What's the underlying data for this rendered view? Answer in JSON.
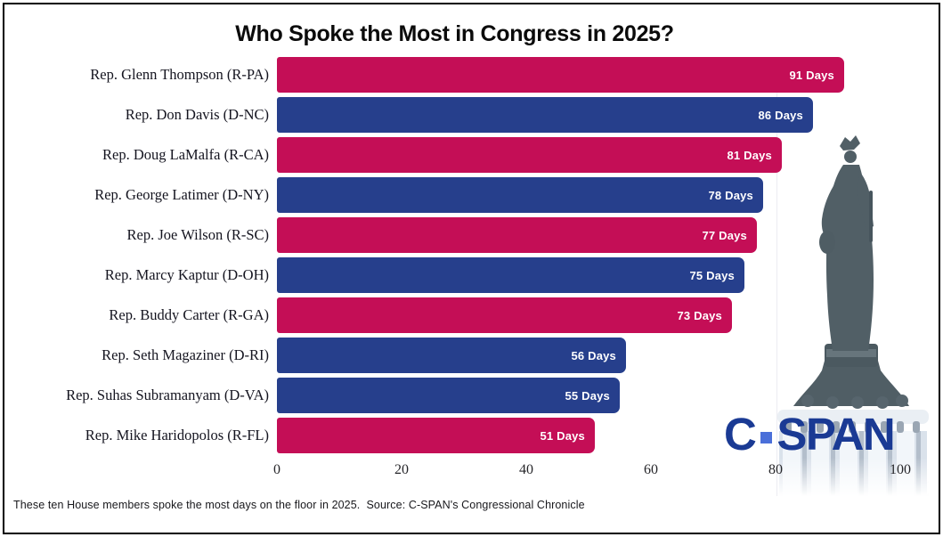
{
  "chart_data": {
    "type": "bar",
    "orientation": "horizontal",
    "title": "Who Spoke the Most in Congress in 2025?",
    "categories": [
      "Rep. Glenn Thompson (R-PA)",
      "Rep. Don Davis (D-NC)",
      "Rep. Doug LaMalfa (R-CA)",
      "Rep. George Latimer (D-NY)",
      "Rep. Joe Wilson (R-SC)",
      "Rep. Marcy Kaptur (D-OH)",
      "Rep. Buddy Carter (R-GA)",
      "Rep. Seth Magaziner (D-RI)",
      "Rep. Suhas Subramanyam (D-VA)",
      "Rep. Mike Haridopolos (R-FL)"
    ],
    "values": [
      91,
      86,
      81,
      78,
      77,
      75,
      73,
      56,
      55,
      51
    ],
    "parties": [
      "R",
      "D",
      "R",
      "D",
      "R",
      "D",
      "R",
      "D",
      "D",
      "R"
    ],
    "bar_colors": {
      "R": "#C40E56",
      "D": "#263F8C"
    },
    "value_suffix": " Days",
    "value_label_color": "#ffffff",
    "xlim": [
      0,
      100
    ],
    "x_ticks": [
      "0",
      "20",
      "40",
      "60",
      "80",
      "100"
    ],
    "grid": false,
    "legend": false
  },
  "footer": {
    "text": "These ten House members spoke the most days on the floor in 2025.  Source: C-SPAN's Congressional Chronicle"
  },
  "logo": {
    "c": "C",
    "span": "SPAN",
    "navy": "#1A3A94",
    "dot_blue": "#4A6FD9"
  },
  "images": {
    "statue": "statue-of-freedom-on-capitol-dome"
  }
}
